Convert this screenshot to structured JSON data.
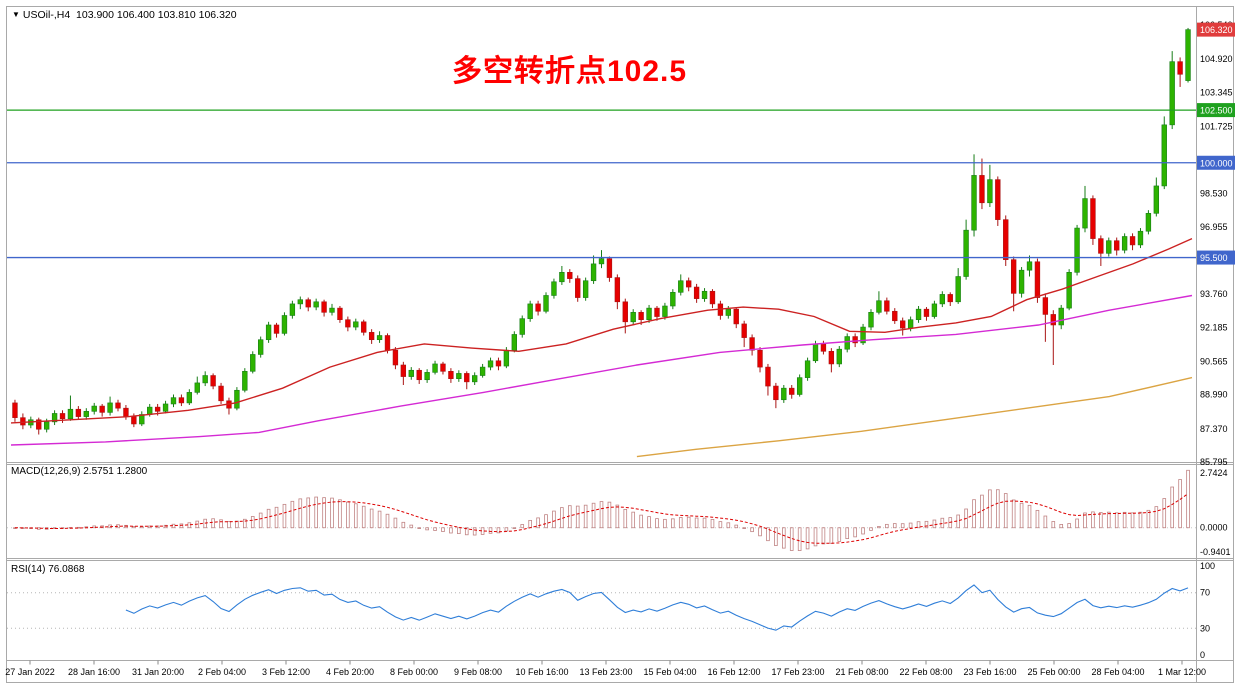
{
  "header": {
    "text": "USOil-,H4  103.900 106.400 103.810 106.320",
    "dropdown_icon": "▼"
  },
  "annotation": {
    "text": "多空转折点102.5",
    "color": "#ff0000"
  },
  "chart_data": {
    "type": "candlestick",
    "symbol": "USOil",
    "timeframe": "H4",
    "current_ohlc": {
      "open": "103.900",
      "high": "106.400",
      "low": "103.810",
      "close": "106.320"
    },
    "ylim": [
      85.795,
      107.394
    ],
    "price_axis_labels": [
      "106.540",
      "104.920",
      "103.345",
      "101.725",
      "98.530",
      "96.955",
      "93.760",
      "92.185",
      "90.565",
      "88.990",
      "87.370",
      "85.795"
    ],
    "hlines": [
      {
        "price": 102.5,
        "label": "102.500",
        "color": "#1fa11f"
      },
      {
        "price": 100.0,
        "label": "100.000",
        "color": "#4066cc"
      },
      {
        "price": 95.5,
        "label": "95.500",
        "color": "#4066cc"
      }
    ],
    "current_price": {
      "label": "106.320",
      "value": 106.32,
      "color": "#e03c3c"
    },
    "candle_up_color": "#2db300",
    "candle_up_stroke": "#177d17",
    "candle_down_color": "#e60000",
    "candle_down_stroke": "#a81414",
    "ohlc": [
      [
        88.6,
        88.75,
        87.7,
        87.9
      ],
      [
        87.9,
        88.1,
        87.35,
        87.55
      ],
      [
        87.55,
        87.95,
        87.4,
        87.8
      ],
      [
        87.8,
        87.9,
        87.1,
        87.35
      ],
      [
        87.35,
        87.85,
        87.2,
        87.7
      ],
      [
        87.7,
        88.25,
        87.55,
        88.1
      ],
      [
        88.1,
        88.25,
        87.65,
        87.85
      ],
      [
        87.85,
        88.95,
        87.75,
        88.3
      ],
      [
        88.3,
        88.45,
        87.8,
        87.95
      ],
      [
        87.95,
        88.35,
        87.8,
        88.2
      ],
      [
        88.2,
        88.6,
        88.05,
        88.45
      ],
      [
        88.45,
        88.55,
        87.95,
        88.15
      ],
      [
        88.15,
        88.9,
        88.0,
        88.6
      ],
      [
        88.6,
        88.75,
        88.2,
        88.35
      ],
      [
        88.35,
        88.5,
        87.8,
        87.95
      ],
      [
        87.95,
        88.1,
        87.45,
        87.6
      ],
      [
        87.6,
        88.2,
        87.5,
        88.05
      ],
      [
        88.05,
        88.55,
        87.95,
        88.4
      ],
      [
        88.4,
        88.55,
        88.0,
        88.2
      ],
      [
        88.2,
        88.7,
        88.1,
        88.55
      ],
      [
        88.55,
        89.0,
        88.4,
        88.85
      ],
      [
        88.85,
        89.0,
        88.45,
        88.6
      ],
      [
        88.6,
        89.25,
        88.5,
        89.1
      ],
      [
        89.1,
        89.85,
        89.0,
        89.55
      ],
      [
        89.55,
        90.1,
        89.4,
        89.9
      ],
      [
        89.9,
        90.0,
        89.25,
        89.4
      ],
      [
        89.4,
        89.55,
        88.55,
        88.7
      ],
      [
        88.7,
        88.85,
        88.05,
        88.35
      ],
      [
        88.35,
        89.35,
        88.25,
        89.2
      ],
      [
        89.2,
        90.25,
        89.1,
        90.1
      ],
      [
        90.1,
        91.05,
        90.0,
        90.9
      ],
      [
        90.9,
        91.75,
        90.75,
        91.6
      ],
      [
        91.6,
        92.45,
        91.45,
        92.3
      ],
      [
        92.3,
        92.4,
        91.7,
        91.9
      ],
      [
        91.9,
        92.9,
        91.8,
        92.75
      ],
      [
        92.75,
        93.45,
        92.6,
        93.3
      ],
      [
        93.3,
        93.65,
        93.05,
        93.5
      ],
      [
        93.5,
        93.6,
        92.95,
        93.15
      ],
      [
        93.15,
        93.55,
        93.0,
        93.4
      ],
      [
        93.4,
        93.5,
        92.7,
        92.9
      ],
      [
        92.9,
        93.3,
        92.75,
        93.1
      ],
      [
        93.1,
        93.2,
        92.4,
        92.55
      ],
      [
        92.55,
        92.7,
        92.0,
        92.2
      ],
      [
        92.2,
        92.6,
        92.05,
        92.45
      ],
      [
        92.45,
        92.55,
        91.8,
        91.95
      ],
      [
        91.95,
        92.1,
        91.4,
        91.6
      ],
      [
        91.6,
        92.0,
        91.45,
        91.8
      ],
      [
        91.8,
        91.9,
        90.95,
        91.1
      ],
      [
        91.1,
        91.25,
        90.2,
        90.4
      ],
      [
        90.4,
        90.55,
        89.45,
        89.85
      ],
      [
        89.85,
        90.3,
        89.7,
        90.15
      ],
      [
        90.15,
        90.25,
        89.5,
        89.7
      ],
      [
        89.7,
        90.2,
        89.55,
        90.05
      ],
      [
        90.05,
        90.6,
        89.95,
        90.45
      ],
      [
        90.45,
        90.55,
        89.95,
        90.1
      ],
      [
        90.1,
        90.25,
        89.55,
        89.75
      ],
      [
        89.75,
        90.15,
        89.6,
        90.0
      ],
      [
        90.0,
        90.1,
        89.25,
        89.6
      ],
      [
        89.6,
        90.05,
        89.45,
        89.9
      ],
      [
        89.9,
        90.45,
        89.8,
        90.3
      ],
      [
        90.3,
        90.75,
        90.15,
        90.6
      ],
      [
        90.6,
        90.75,
        90.15,
        90.35
      ],
      [
        90.35,
        91.25,
        90.25,
        91.1
      ],
      [
        91.1,
        92.0,
        91.0,
        91.85
      ],
      [
        91.85,
        92.75,
        91.7,
        92.6
      ],
      [
        92.6,
        93.45,
        92.45,
        93.3
      ],
      [
        93.3,
        93.45,
        92.75,
        92.95
      ],
      [
        92.95,
        93.85,
        92.85,
        93.7
      ],
      [
        93.7,
        94.5,
        93.55,
        94.35
      ],
      [
        94.35,
        95.1,
        94.2,
        94.8
      ],
      [
        94.8,
        94.95,
        94.3,
        94.5
      ],
      [
        94.5,
        94.65,
        93.4,
        93.6
      ],
      [
        93.6,
        94.55,
        93.45,
        94.4
      ],
      [
        94.4,
        95.6,
        94.25,
        95.2
      ],
      [
        95.2,
        95.85,
        95.0,
        95.45
      ],
      [
        95.45,
        95.55,
        94.35,
        94.55
      ],
      [
        94.55,
        94.7,
        93.05,
        93.4
      ],
      [
        93.4,
        93.55,
        91.9,
        92.45
      ],
      [
        92.45,
        93.05,
        92.3,
        92.9
      ],
      [
        92.9,
        93.0,
        92.3,
        92.55
      ],
      [
        92.55,
        93.25,
        92.4,
        93.1
      ],
      [
        93.1,
        93.2,
        92.5,
        92.7
      ],
      [
        92.7,
        93.35,
        92.55,
        93.2
      ],
      [
        93.2,
        94.0,
        93.05,
        93.85
      ],
      [
        93.85,
        94.7,
        93.7,
        94.4
      ],
      [
        94.4,
        94.55,
        93.9,
        94.1
      ],
      [
        94.1,
        94.25,
        93.35,
        93.55
      ],
      [
        93.55,
        94.05,
        93.4,
        93.9
      ],
      [
        93.9,
        94.0,
        93.1,
        93.3
      ],
      [
        93.3,
        93.45,
        92.55,
        92.75
      ],
      [
        92.75,
        93.2,
        92.6,
        93.05
      ],
      [
        93.05,
        93.15,
        92.15,
        92.35
      ],
      [
        92.35,
        92.5,
        91.25,
        91.7
      ],
      [
        91.7,
        91.85,
        90.85,
        91.1
      ],
      [
        91.1,
        91.25,
        90.05,
        90.3
      ],
      [
        90.3,
        90.45,
        88.95,
        89.4
      ],
      [
        89.4,
        89.55,
        88.35,
        88.75
      ],
      [
        88.75,
        89.45,
        88.6,
        89.3
      ],
      [
        89.3,
        89.45,
        88.8,
        89.0
      ],
      [
        89.0,
        89.95,
        88.9,
        89.8
      ],
      [
        89.8,
        90.75,
        89.65,
        90.6
      ],
      [
        90.6,
        91.55,
        90.5,
        91.4
      ],
      [
        91.4,
        91.55,
        90.9,
        91.05
      ],
      [
        91.05,
        91.2,
        90.05,
        90.45
      ],
      [
        90.45,
        91.3,
        90.3,
        91.15
      ],
      [
        91.15,
        91.9,
        91.0,
        91.75
      ],
      [
        91.75,
        91.9,
        91.25,
        91.45
      ],
      [
        91.45,
        92.35,
        91.35,
        92.2
      ],
      [
        92.2,
        93.05,
        92.05,
        92.9
      ],
      [
        92.9,
        93.9,
        92.8,
        93.45
      ],
      [
        93.45,
        93.6,
        92.8,
        92.95
      ],
      [
        92.95,
        93.1,
        92.35,
        92.5
      ],
      [
        92.5,
        92.65,
        91.8,
        92.15
      ],
      [
        92.15,
        92.7,
        92.0,
        92.55
      ],
      [
        92.55,
        93.2,
        92.4,
        93.05
      ],
      [
        93.05,
        93.15,
        92.5,
        92.7
      ],
      [
        92.7,
        93.45,
        92.6,
        93.3
      ],
      [
        93.3,
        93.9,
        93.15,
        93.75
      ],
      [
        93.75,
        93.85,
        93.2,
        93.4
      ],
      [
        93.4,
        95.0,
        93.3,
        94.6
      ],
      [
        94.6,
        97.3,
        94.45,
        96.8
      ],
      [
        96.8,
        100.4,
        96.5,
        99.4
      ],
      [
        99.4,
        100.2,
        97.8,
        98.1
      ],
      [
        98.1,
        99.9,
        97.9,
        99.2
      ],
      [
        99.2,
        99.35,
        97.0,
        97.3
      ],
      [
        97.3,
        97.5,
        95.1,
        95.4
      ],
      [
        95.4,
        95.55,
        92.95,
        93.8
      ],
      [
        93.8,
        95.05,
        93.6,
        94.9
      ],
      [
        94.9,
        95.6,
        94.6,
        95.3
      ],
      [
        95.3,
        95.45,
        93.35,
        93.6
      ],
      [
        93.6,
        93.8,
        91.5,
        92.8
      ],
      [
        92.8,
        93.0,
        90.4,
        92.3
      ],
      [
        92.3,
        93.25,
        92.1,
        93.1
      ],
      [
        93.1,
        94.95,
        93.0,
        94.8
      ],
      [
        94.8,
        97.05,
        94.65,
        96.9
      ],
      [
        96.9,
        98.9,
        96.7,
        98.3
      ],
      [
        98.3,
        98.45,
        96.1,
        96.4
      ],
      [
        96.4,
        96.55,
        95.1,
        95.7
      ],
      [
        95.7,
        96.45,
        95.55,
        96.3
      ],
      [
        96.3,
        96.45,
        95.6,
        95.85
      ],
      [
        95.85,
        96.65,
        95.7,
        96.5
      ],
      [
        96.5,
        96.65,
        95.85,
        96.1
      ],
      [
        96.1,
        96.9,
        95.95,
        96.75
      ],
      [
        96.75,
        97.75,
        96.6,
        97.6
      ],
      [
        97.6,
        99.3,
        97.45,
        98.9
      ],
      [
        98.9,
        102.2,
        98.75,
        101.8
      ],
      [
        101.8,
        105.3,
        101.6,
        104.8
      ],
      [
        104.8,
        105.0,
        103.6,
        104.2
      ],
      [
        103.9,
        106.4,
        103.81,
        106.32
      ]
    ],
    "moving_averages": [
      {
        "name": "ma-fast-red",
        "color": "#cc2222",
        "points": [
          [
            0.0,
            87.65
          ],
          [
            0.05,
            87.8
          ],
          [
            0.1,
            87.95
          ],
          [
            0.15,
            88.25
          ],
          [
            0.19,
            88.6
          ],
          [
            0.23,
            89.3
          ],
          [
            0.27,
            90.3
          ],
          [
            0.31,
            91.0
          ],
          [
            0.35,
            91.4
          ],
          [
            0.39,
            91.2
          ],
          [
            0.43,
            91.05
          ],
          [
            0.47,
            91.4
          ],
          [
            0.51,
            92.1
          ],
          [
            0.55,
            92.6
          ],
          [
            0.59,
            93.0
          ],
          [
            0.62,
            93.15
          ],
          [
            0.65,
            93.05
          ],
          [
            0.68,
            92.7
          ],
          [
            0.71,
            92.0
          ],
          [
            0.74,
            91.95
          ],
          [
            0.77,
            92.2
          ],
          [
            0.8,
            92.4
          ],
          [
            0.83,
            92.7
          ],
          [
            0.86,
            93.5
          ],
          [
            0.89,
            94.0
          ],
          [
            0.92,
            94.6
          ],
          [
            0.95,
            95.2
          ],
          [
            0.98,
            95.9
          ],
          [
            1.0,
            96.4
          ]
        ]
      },
      {
        "name": "ma-mid-magenta",
        "color": "#d42ad4",
        "points": [
          [
            0.0,
            86.6
          ],
          [
            0.08,
            86.75
          ],
          [
            0.16,
            87.0
          ],
          [
            0.21,
            87.2
          ],
          [
            0.26,
            87.75
          ],
          [
            0.33,
            88.45
          ],
          [
            0.4,
            89.1
          ],
          [
            0.46,
            89.7
          ],
          [
            0.53,
            90.4
          ],
          [
            0.6,
            91.0
          ],
          [
            0.67,
            91.35
          ],
          [
            0.73,
            91.6
          ],
          [
            0.8,
            91.85
          ],
          [
            0.87,
            92.3
          ],
          [
            0.93,
            93.0
          ],
          [
            1.0,
            93.7
          ]
        ]
      },
      {
        "name": "ma-slow-orange",
        "color": "#dba443",
        "points": [
          [
            0.53,
            86.05
          ],
          [
            0.58,
            86.4
          ],
          [
            0.65,
            86.8
          ],
          [
            0.72,
            87.25
          ],
          [
            0.79,
            87.8
          ],
          [
            0.86,
            88.35
          ],
          [
            0.93,
            88.9
          ],
          [
            1.0,
            89.8
          ]
        ]
      }
    ],
    "macd": {
      "label": "MACD(12,26,9) 2.5751 1.2800",
      "params": [
        12,
        26,
        9
      ],
      "main_value": "2.5751",
      "signal_value": "1.2800",
      "axis_labels": [
        "2.7424",
        "0.0000",
        "-0.9401"
      ],
      "bar_color": "#c08484",
      "signal_color": "#dd0000"
    },
    "rsi": {
      "label": "RSI(14) 76.0868",
      "period": 14,
      "value": "76.0868",
      "axis_labels": [
        "100",
        "70",
        "30",
        "0"
      ],
      "levels": [
        70,
        30
      ],
      "line_color": "#2f7ed8"
    },
    "time_axis": [
      "27 Jan 2022",
      "28 Jan 16:00",
      "31 Jan 20:00",
      "2 Feb 04:00",
      "3 Feb 12:00",
      "4 Feb 20:00",
      "8 Feb 00:00",
      "9 Feb 08:00",
      "10 Feb 16:00",
      "13 Feb 23:00",
      "15 Feb 04:00",
      "16 Feb 12:00",
      "17 Feb 23:00",
      "21 Feb 08:00",
      "22 Feb 08:00",
      "23 Feb 16:00",
      "25 Feb 00:00",
      "28 Feb 04:00",
      "1 Mar 12:00"
    ]
  }
}
